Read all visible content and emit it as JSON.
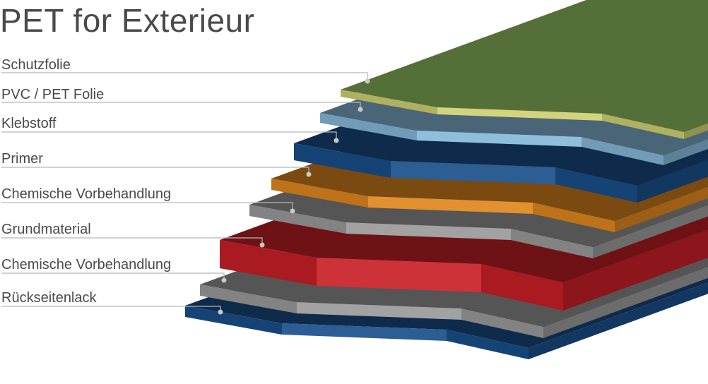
{
  "title": "PET for Exterieur",
  "layers": [
    {
      "label": "Schutzfolie",
      "color": "#cfcf72"
    },
    {
      "label": "PVC / PET Folie",
      "color": "#85b8d8"
    },
    {
      "label": "Klebstoff",
      "color": "#1a4f8a"
    },
    {
      "label": "Primer",
      "color": "#e0861e"
    },
    {
      "label": "Chemische Vorbehandlung",
      "color": "#9a9a9a"
    },
    {
      "label": "Grundmaterial",
      "color": "#c82027"
    },
    {
      "label": "Chemische Vorbehandlung",
      "color": "#9a9a9a"
    },
    {
      "label": "Rückseitenlack",
      "color": "#1a4f8a"
    }
  ],
  "top_surface_color": "#556f38"
}
